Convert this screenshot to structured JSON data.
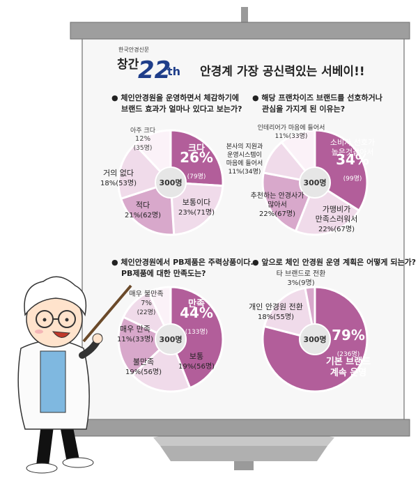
{
  "header": {
    "publisher": "한국안경신문",
    "badge_prefix": "창간",
    "badge_number": "22",
    "badge_suffix": "th",
    "title": "안경계 가장 공신력있는 서베이!!"
  },
  "colors": {
    "dark": "#b25e9a",
    "mid": "#d8a8cb",
    "light": "#f0dbea",
    "pale": "#fbf2f8",
    "board": "#f7f7f7",
    "rail": "#9e9e9e",
    "center": "#e6e6e6",
    "shirt": "#7fb8e0"
  },
  "chart_data": [
    {
      "type": "pie",
      "title_lines": [
        "● 체인안경원을 운영하면서 체감하기에",
        "브랜드 효과가 얼마나 있다고 보는가?"
      ],
      "center_label": "300명",
      "slices": [
        {
          "lines": [
            "크다",
            "26%",
            "(79명)"
          ],
          "value": 26,
          "count": 79
        },
        {
          "lines": [
            "보통이다",
            "23%(71명)"
          ],
          "value": 23,
          "count": 71
        },
        {
          "lines": [
            "적다",
            "21%(62명)"
          ],
          "value": 21,
          "count": 62
        },
        {
          "lines": [
            "거의 없다",
            "18%(53명)"
          ],
          "value": 18,
          "count": 53
        },
        {
          "lines": [
            "아주 크다",
            "12%",
            "(35명)"
          ],
          "value": 12,
          "count": 35
        }
      ]
    },
    {
      "type": "pie",
      "title_lines": [
        "● 해당 프랜차이즈 브랜드를 선호하거나",
        "관심을 가지게 된 이유는?"
      ],
      "center_label": "300명",
      "slices": [
        {
          "lines": [
            "소비자 선호가",
            "높은것같아서",
            "34%",
            "(99명)"
          ],
          "value": 34,
          "count": 99
        },
        {
          "lines": [
            "가맹비가",
            "만족스러워서",
            "22%(67명)"
          ],
          "value": 22,
          "count": 67
        },
        {
          "lines": [
            "추천하는 안경사가",
            "많아서",
            "22%(67명)"
          ],
          "value": 22,
          "count": 67
        },
        {
          "lines": [
            "본사의 지원과",
            "운영시스템이",
            "마음에 들어서",
            "11%(34명)"
          ],
          "value": 11,
          "count": 34
        },
        {
          "lines": [
            "인테리어가 마음에 들어서",
            "11%(33명)"
          ],
          "value": 11,
          "count": 33
        }
      ]
    },
    {
      "type": "pie",
      "title_lines": [
        "● 체인안경원에서 PB제품은 주력상품이다.",
        "PB제품에 대한 만족도는?"
      ],
      "center_label": "300명",
      "slices": [
        {
          "lines": [
            "만족",
            "44%",
            "(133명)"
          ],
          "value": 44,
          "count": 133
        },
        {
          "lines": [
            "보통",
            "19%(56명)"
          ],
          "value": 19,
          "count": 56
        },
        {
          "lines": [
            "불만족",
            "19%(56명)"
          ],
          "value": 19,
          "count": 56
        },
        {
          "lines": [
            "매우 만족",
            "11%(33명)"
          ],
          "value": 11,
          "count": 33
        },
        {
          "lines": [
            "매우 불만족",
            "7%",
            "(22명)"
          ],
          "value": 7,
          "count": 22
        }
      ]
    },
    {
      "type": "pie",
      "title_lines": [
        "● 앞으로 체인 안경원 운영 계획은 어떻게 되는가?"
      ],
      "center_label": "300명",
      "slices": [
        {
          "lines": [
            "79%",
            "(236명)",
            "기본 브랜드",
            "계속 운영"
          ],
          "value": 79,
          "count": 236
        },
        {
          "lines": [
            "개인 안경원 전환",
            "18%(55명)"
          ],
          "value": 18,
          "count": 55
        },
        {
          "lines": [
            "타 브랜드로 전환",
            "3%(9명)"
          ],
          "value": 3,
          "count": 9
        }
      ]
    }
  ]
}
